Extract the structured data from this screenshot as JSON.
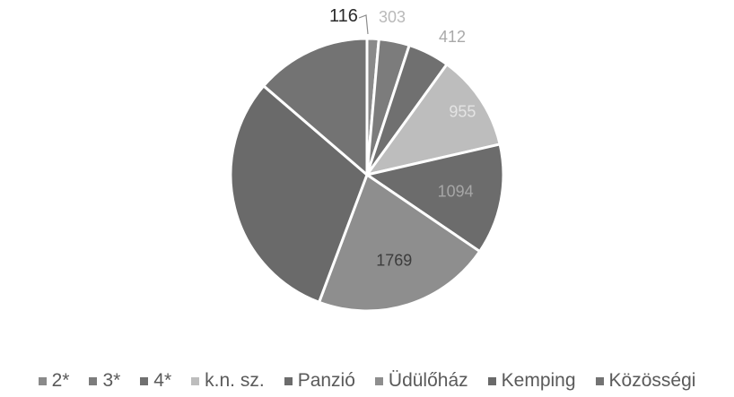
{
  "chart_data": {
    "type": "pie",
    "categories": [
      "2*",
      "3*",
      "4*",
      "k.n. sz.",
      "Panzió",
      "Üdülőház",
      "Kemping",
      "Közösségi"
    ],
    "values": [
      116,
      303,
      412,
      955,
      1094,
      1769,
      2553,
      1142
    ],
    "colors": [
      "#8a8a8a",
      "#7c7c7c",
      "#707070",
      "#bdbdbd",
      "#6c6c6c",
      "#8e8e8e",
      "#6a6a6a",
      "#737373"
    ],
    "data_label_colors": [
      "#2a2a2a",
      "#b9b9b9",
      "#a9a9a9",
      "#e4e4e4",
      "#a6a6a6",
      "#3c3c3c",
      "#8d8d8d",
      "#8d8d8d"
    ],
    "data_labels": [
      "116",
      "303",
      "412",
      "955",
      "1094",
      "1769",
      "",
      ""
    ],
    "start_angle_deg": 0,
    "direction": "clockwise",
    "legend_position": "bottom",
    "title": ""
  }
}
